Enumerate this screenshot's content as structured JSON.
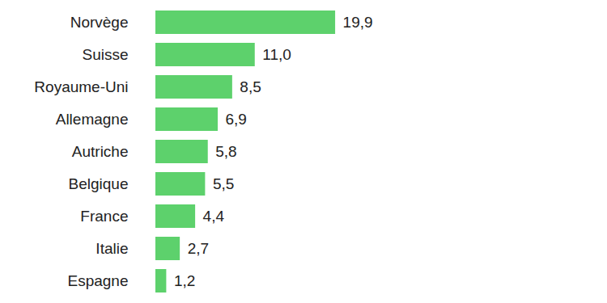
{
  "chart_data": {
    "type": "bar",
    "orientation": "horizontal",
    "categories": [
      "Norvège",
      "Suisse",
      "Royaume-Uni",
      "Allemagne",
      "Autriche",
      "Belgique",
      "France",
      "Italie",
      "Espagne"
    ],
    "values": [
      19.9,
      11.0,
      8.5,
      6.9,
      5.8,
      5.5,
      4.4,
      2.7,
      1.2
    ],
    "value_labels": [
      "19,9",
      "11,0",
      "8,5",
      "6,9",
      "5,8",
      "5,5",
      "4,4",
      "2,7",
      "1,2"
    ],
    "color": "#5dd16c",
    "xlim": [
      0,
      50
    ],
    "data_labels": true,
    "tick_labels": "y",
    "grid": false
  }
}
